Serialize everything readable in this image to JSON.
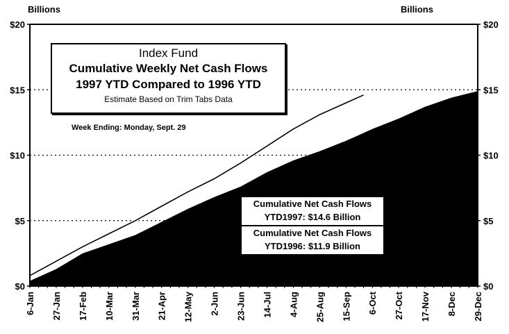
{
  "axis": {
    "left_unit": "Billions",
    "right_unit": "Billions",
    "y_ticks": [
      "$0",
      "$5",
      "$10",
      "$15",
      "$20"
    ],
    "x_ticks": [
      "6-Jan",
      "27-Jan",
      "17-Feb",
      "10-Mar",
      "31-Mar",
      "21-Apr",
      "12-May",
      "2-Jun",
      "23-Jun",
      "14-Jul",
      "4-Aug",
      "25-Aug",
      "15-Sep",
      "6-Oct",
      "27-Oct",
      "17-Nov",
      "8-Dec",
      "29-Dec"
    ]
  },
  "title_box": {
    "line1": "Index Fund",
    "line2": "Cumulative Weekly Net Cash Flows",
    "line3": "1997 YTD Compared to 1996 YTD",
    "line4": "Estimate Based on Trim Tabs Data"
  },
  "week_ending": "Week Ending: Monday, Sept. 29",
  "legend": {
    "ytd1997_line1": "Cumulative Net Cash Flows",
    "ytd1997_line2": "YTD1997: $14.6 Billion",
    "ytd1996_line1": "Cumulative Net Cash Flows",
    "ytd1996_line2": "YTD1996: $11.9 Billion"
  },
  "colors": {
    "area_1996": "#000000",
    "line_1997": "#000000",
    "background": "#ffffff"
  },
  "chart_data": {
    "type": "area",
    "title": "Index Fund Cumulative Weekly Net Cash Flows 1997 YTD Compared to 1996 YTD",
    "subtitle": "Estimate Based on Trim Tabs Data",
    "annotation": "Week Ending: Monday, Sept. 29",
    "xlabel": "",
    "ylabel": "Billions",
    "ylim": [
      0,
      20
    ],
    "y_ticks": [
      0,
      5,
      10,
      15,
      20
    ],
    "grid": "dotted horizontal at 5, 10, 15",
    "categories": [
      "6-Jan",
      "27-Jan",
      "17-Feb",
      "10-Mar",
      "31-Mar",
      "21-Apr",
      "12-May",
      "2-Jun",
      "23-Jun",
      "14-Jul",
      "4-Aug",
      "25-Aug",
      "15-Sep",
      "6-Oct",
      "27-Oct",
      "17-Nov",
      "8-Dec",
      "29-Dec"
    ],
    "series": [
      {
        "name": "YTD1997 (line)",
        "type": "line",
        "values": [
          0.8,
          1.9,
          3.0,
          4.0,
          5.0,
          6.1,
          7.2,
          8.2,
          9.4,
          10.7,
          12.0,
          13.1,
          14.0,
          null,
          null,
          null,
          null,
          null
        ],
        "last_point": {
          "date": "29-Sep",
          "value": 14.6
        }
      },
      {
        "name": "YTD1996 (filled area)",
        "type": "area",
        "values": [
          0.4,
          1.3,
          2.5,
          3.2,
          3.9,
          4.9,
          5.9,
          6.8,
          7.6,
          8.7,
          9.6,
          10.3,
          11.1,
          12.0,
          12.8,
          13.7,
          14.4,
          14.9
        ]
      }
    ],
    "legend": [
      "Cumulative Net Cash Flows YTD1997: $14.6 Billion",
      "Cumulative Net Cash Flows YTD1996: $11.9 Billion"
    ]
  }
}
